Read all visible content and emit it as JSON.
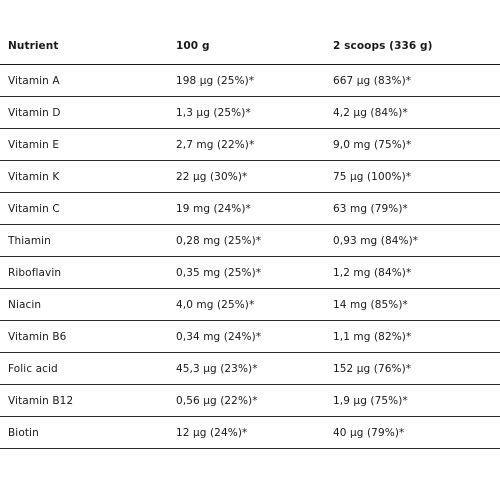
{
  "table": {
    "headers": [
      "Nutrient",
      "100 g",
      "2 scoops (336 g)"
    ],
    "rows": [
      [
        "Vitamin A",
        "198 µg (25%)*",
        "667 µg (83%)*"
      ],
      [
        "Vitamin D",
        "1,3 µg (25%)*",
        "4,2 µg (84%)*"
      ],
      [
        "Vitamin E",
        "2,7 mg (22%)*",
        "9,0 mg (75%)*"
      ],
      [
        "Vitamin K",
        "22 µg (30%)*",
        "75 µg (100%)*"
      ],
      [
        "Vitamin C",
        "19 mg (24%)*",
        "63 mg (79%)*"
      ],
      [
        "Thiamin",
        "0,28 mg (25%)*",
        "0,93 mg (84%)*"
      ],
      [
        "Riboflavin",
        "0,35 mg (25%)*",
        "1,2 mg (84%)*"
      ],
      [
        "Niacin",
        "4,0 mg (25%)*",
        "14 mg (85%)*"
      ],
      [
        "Vitamin B6",
        "0,34 mg (24%)*",
        "1,1 mg (82%)*"
      ],
      [
        "Folic acid",
        "45,3 µg (23%)*",
        "152 µg (76%)*"
      ],
      [
        "Vitamin B12",
        "0,56 µg (22%)*",
        "1,9 µg (75%)*"
      ],
      [
        "Biotin",
        "12 µg (24%)*",
        "40 µg (79%)*"
      ]
    ]
  }
}
